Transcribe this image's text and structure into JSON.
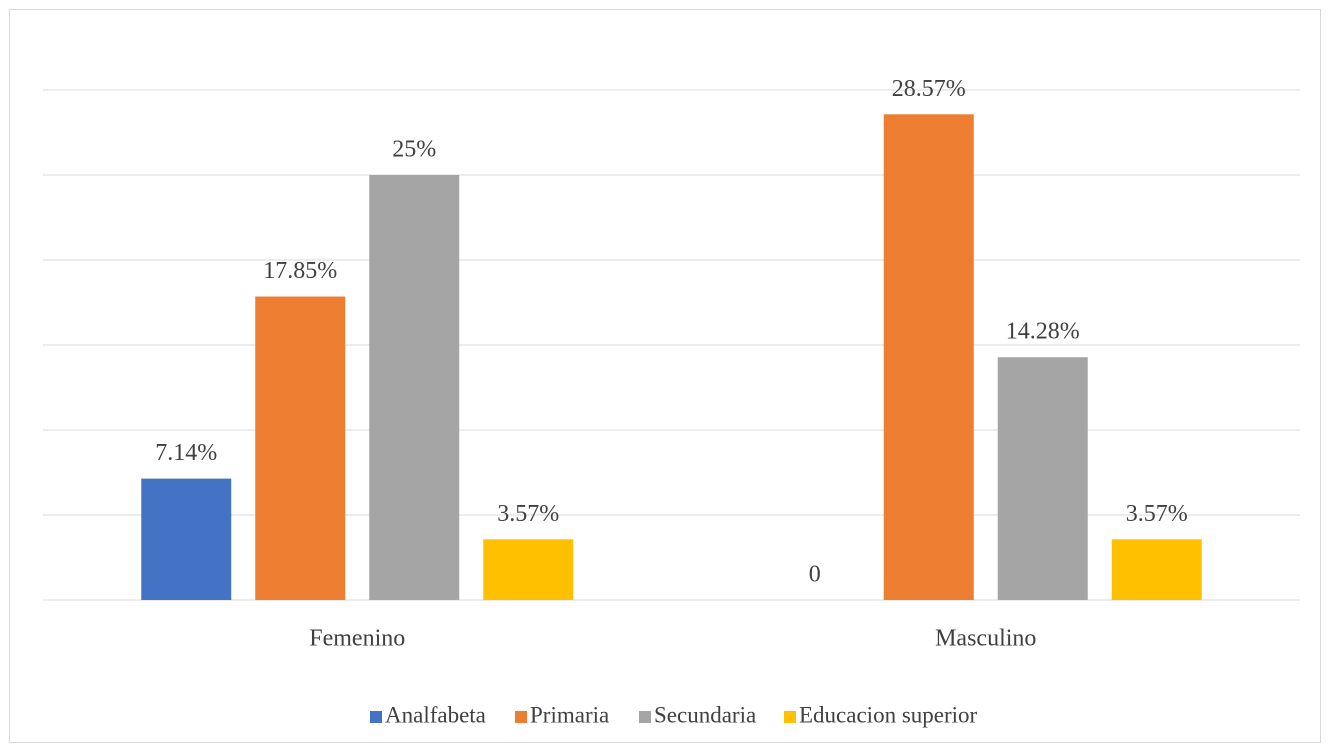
{
  "chart_data": {
    "type": "bar",
    "categories": [
      "Femenino",
      "Masculino"
    ],
    "series": [
      {
        "name": "Analfabeta",
        "color": "#4472c4",
        "values": [
          7.14,
          0
        ],
        "value_labels": [
          "7.14%",
          "0"
        ]
      },
      {
        "name": "Primaria",
        "color": "#ed7d31",
        "values": [
          17.85,
          28.57
        ],
        "value_labels": [
          "17.85%",
          "28.57%"
        ]
      },
      {
        "name": "Secundaria",
        "color": "#a5a5a5",
        "values": [
          25,
          14.28
        ],
        "value_labels": [
          "25%",
          "14.28%"
        ]
      },
      {
        "name": "Educacion superior",
        "color": "#ffc000",
        "values": [
          3.57,
          3.57
        ],
        "value_labels": [
          "3.57%",
          "3.57%"
        ]
      }
    ],
    "ylim": [
      0,
      30
    ],
    "yticks": [
      0,
      5,
      10,
      15,
      20,
      25,
      30
    ],
    "grid": true,
    "legend": "bottom"
  }
}
